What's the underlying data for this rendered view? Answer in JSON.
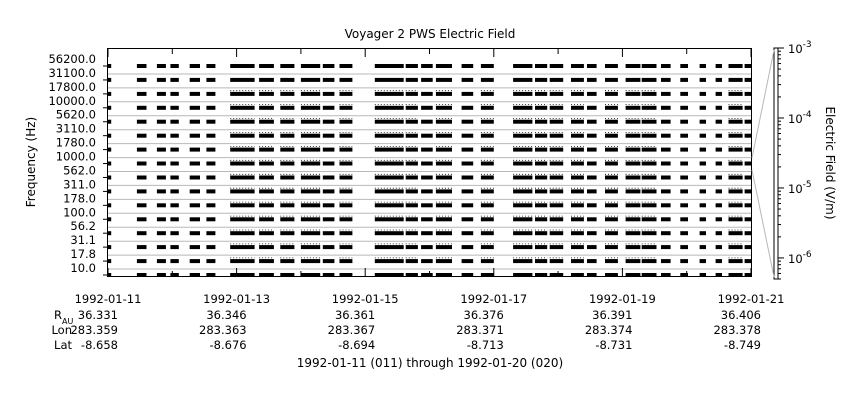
{
  "chart_data": {
    "type": "heatmap",
    "title": "Voyager 2 PWS Electric Field",
    "ylabel": "Frequency (Hz)",
    "y_ticks": [
      "56200.0",
      "31100.0",
      "17800.0",
      "10000.0",
      "5620.0",
      "3110.0",
      "1780.0",
      "1000.0",
      "562.0",
      "311.0",
      "178.0",
      "100.0",
      "56.2",
      "31.1",
      "17.8",
      "10.0"
    ],
    "x_ticks": [
      "1992-01-11",
      "1992-01-13",
      "1992-01-15",
      "1992-01-17",
      "1992-01-19",
      "1992-01-21"
    ],
    "x_range": [
      "1992-01-11",
      "1992-01-21"
    ],
    "ephemeris": {
      "labels": [
        "R",
        "AU",
        "Lon",
        "Lat"
      ],
      "r_au": [
        "36.331",
        "36.346",
        "36.361",
        "36.376",
        "36.391",
        "36.406"
      ],
      "lon": [
        "283.359",
        "283.363",
        "283.367",
        "283.371",
        "283.374",
        "283.378"
      ],
      "lat": [
        "-8.658",
        "-8.676",
        "-8.694",
        "-8.713",
        "-8.731",
        "-8.749"
      ]
    },
    "xlabel": "1992-01-11 (011) through 1992-01-20 (020)",
    "colorbar": {
      "label": "Electric Field (V/m)",
      "scale": "log",
      "range": [
        5e-07,
        0.001
      ],
      "ticks": [
        {
          "base": "10",
          "exp": "-3",
          "value": 0.001
        },
        {
          "base": "10",
          "exp": "-4",
          "value": 0.0001
        },
        {
          "base": "10",
          "exp": "-5",
          "value": 1e-05
        },
        {
          "base": "10",
          "exp": "-6",
          "value": 1e-06
        }
      ]
    },
    "channel_count": 16,
    "data_blocks_days": [
      [
        0.0,
        0.05
      ],
      [
        0.45,
        0.6
      ],
      [
        0.76,
        0.9
      ],
      [
        0.97,
        1.1
      ],
      [
        1.27,
        1.43
      ],
      [
        1.53,
        1.67
      ],
      [
        1.9,
        2.28
      ],
      [
        2.35,
        2.58
      ],
      [
        2.68,
        2.9
      ],
      [
        3.0,
        3.3
      ],
      [
        3.34,
        3.52
      ],
      [
        3.6,
        3.8
      ],
      [
        4.15,
        4.6
      ],
      [
        4.63,
        4.82
      ],
      [
        4.87,
        5.05
      ],
      [
        5.1,
        5.35
      ],
      [
        5.5,
        5.68
      ],
      [
        5.8,
        6.0
      ],
      [
        6.3,
        6.6
      ],
      [
        6.64,
        6.83
      ],
      [
        6.87,
        7.08
      ],
      [
        7.2,
        7.4
      ],
      [
        7.45,
        7.6
      ],
      [
        7.73,
        7.93
      ],
      [
        8.05,
        8.28
      ],
      [
        8.3,
        8.53
      ],
      [
        8.6,
        8.75
      ],
      [
        8.9,
        9.02
      ],
      [
        9.2,
        9.3
      ],
      [
        9.45,
        9.55
      ],
      [
        9.65,
        9.87
      ],
      [
        9.9,
        10.0
      ]
    ]
  }
}
